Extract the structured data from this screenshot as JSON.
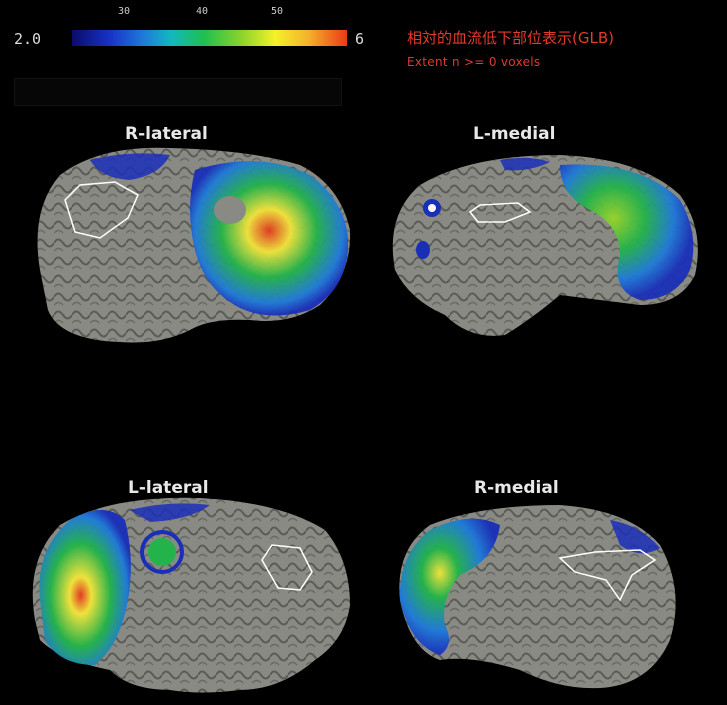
{
  "colorbar": {
    "min_label": "2.0",
    "max_label": "6",
    "ticks": [
      "30",
      "40",
      "50"
    ],
    "colors": [
      "#0b0b6a",
      "#1833c8",
      "#1f7ad8",
      "#12b8c0",
      "#1fbf50",
      "#8ed42a",
      "#f4f22a",
      "#f5b12a",
      "#ea3a16"
    ]
  },
  "header": {
    "title": "相対的血流低下部位表示(GLB)",
    "subtitle": "Extent n >= 0     voxels"
  },
  "views": {
    "top_left": "R-lateral",
    "top_right": "L-medial",
    "bottom_left": "L-lateral",
    "bottom_right": "R-medial"
  },
  "style": {
    "brain_gray": "#8a8a84",
    "overlay_blue": "#1a2fb8",
    "overlay_green": "#23b34a",
    "overlay_yellow": "#f2e43a",
    "overlay_red": "#e23a20",
    "title_red": "#e23a2c"
  }
}
